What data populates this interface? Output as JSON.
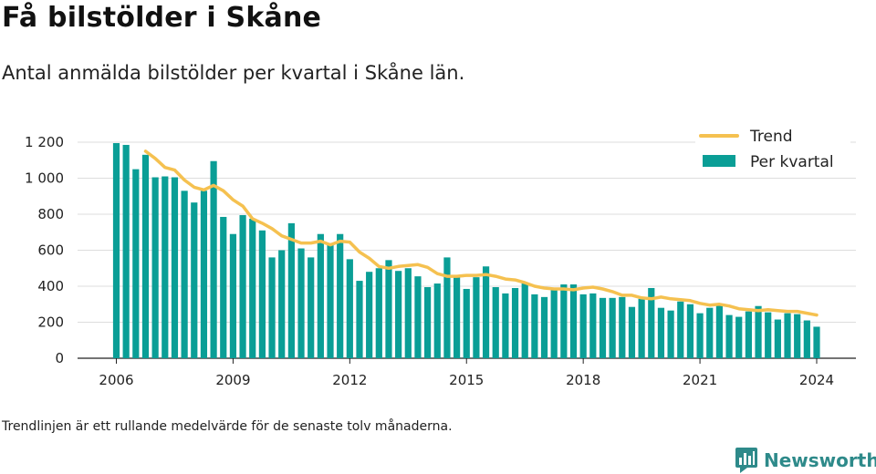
{
  "title": "Få bilstölder i Skåne",
  "subtitle": "Antal anmälda bilstölder per kvartal i Skåne län.",
  "footnote": "Trendlinjen är ett rullande medelvärde för de senaste tolv månaderna.",
  "brand": "Newsworthy",
  "colors": {
    "bar": "#0a9e96",
    "trend": "#f5c150",
    "grid": "#dddddd",
    "brand": "#2e8a8a"
  },
  "chart_data": {
    "type": "bar",
    "title": "Få bilstölder i Skåne",
    "xlabel": "",
    "ylabel": "",
    "ylim": [
      0,
      1250
    ],
    "grid": true,
    "legend_position": "top-right",
    "y_ticks": [
      0,
      200,
      400,
      600,
      800,
      1000,
      1200
    ],
    "y_tick_labels": [
      "0",
      "200",
      "400",
      "600",
      "800",
      "1 000",
      "1 200"
    ],
    "x_ticks": [
      2006,
      2009,
      2012,
      2015,
      2018,
      2021,
      2024
    ],
    "x_tick_labels": [
      "2006",
      "2009",
      "2012",
      "2015",
      "2018",
      "2021",
      "2024"
    ],
    "series": [
      {
        "name": "Per kvartal",
        "type": "bar",
        "x": [
          "2006-Q1",
          "2006-Q2",
          "2006-Q3",
          "2006-Q4",
          "2007-Q1",
          "2007-Q2",
          "2007-Q3",
          "2007-Q4",
          "2008-Q1",
          "2008-Q2",
          "2008-Q3",
          "2008-Q4",
          "2009-Q1",
          "2009-Q2",
          "2009-Q3",
          "2009-Q4",
          "2010-Q1",
          "2010-Q2",
          "2010-Q3",
          "2010-Q4",
          "2011-Q1",
          "2011-Q2",
          "2011-Q3",
          "2011-Q4",
          "2012-Q1",
          "2012-Q2",
          "2012-Q3",
          "2012-Q4",
          "2013-Q1",
          "2013-Q2",
          "2013-Q3",
          "2013-Q4",
          "2014-Q1",
          "2014-Q2",
          "2014-Q3",
          "2014-Q4",
          "2015-Q1",
          "2015-Q2",
          "2015-Q3",
          "2015-Q4",
          "2016-Q1",
          "2016-Q2",
          "2016-Q3",
          "2016-Q4",
          "2017-Q1",
          "2017-Q2",
          "2017-Q3",
          "2017-Q4",
          "2018-Q1",
          "2018-Q2",
          "2018-Q3",
          "2018-Q4",
          "2019-Q1",
          "2019-Q2",
          "2019-Q3",
          "2019-Q4",
          "2020-Q1",
          "2020-Q2",
          "2020-Q3",
          "2020-Q4",
          "2021-Q1",
          "2021-Q2",
          "2021-Q3",
          "2021-Q4",
          "2022-Q1",
          "2022-Q2",
          "2022-Q3",
          "2022-Q4",
          "2023-Q1",
          "2023-Q2",
          "2023-Q3",
          "2023-Q4",
          "2024-Q1"
        ],
        "values": [
          1195,
          1185,
          1050,
          1130,
          1005,
          1010,
          1005,
          930,
          865,
          930,
          1095,
          785,
          690,
          795,
          775,
          710,
          560,
          600,
          750,
          610,
          560,
          690,
          630,
          690,
          550,
          430,
          480,
          500,
          545,
          485,
          500,
          455,
          395,
          415,
          560,
          450,
          385,
          450,
          510,
          395,
          360,
          390,
          415,
          355,
          340,
          385,
          410,
          410,
          355,
          360,
          335,
          335,
          340,
          285,
          330,
          390,
          280,
          265,
          315,
          300,
          250,
          280,
          300,
          240,
          230,
          260,
          290,
          255,
          215,
          250,
          245,
          210,
          175
        ]
      },
      {
        "name": "Trend",
        "type": "line",
        "x": [
          "2006-Q4",
          "2007-Q1",
          "2007-Q2",
          "2007-Q3",
          "2007-Q4",
          "2008-Q1",
          "2008-Q2",
          "2008-Q3",
          "2008-Q4",
          "2009-Q1",
          "2009-Q2",
          "2009-Q3",
          "2009-Q4",
          "2010-Q1",
          "2010-Q2",
          "2010-Q3",
          "2010-Q4",
          "2011-Q1",
          "2011-Q2",
          "2011-Q3",
          "2011-Q4",
          "2012-Q1",
          "2012-Q2",
          "2012-Q3",
          "2012-Q4",
          "2013-Q1",
          "2013-Q2",
          "2013-Q3",
          "2013-Q4",
          "2014-Q1",
          "2014-Q2",
          "2014-Q3",
          "2014-Q4",
          "2015-Q1",
          "2015-Q2",
          "2015-Q3",
          "2015-Q4",
          "2016-Q1",
          "2016-Q2",
          "2016-Q3",
          "2016-Q4",
          "2017-Q1",
          "2017-Q2",
          "2017-Q3",
          "2017-Q4",
          "2018-Q1",
          "2018-Q2",
          "2018-Q3",
          "2018-Q4",
          "2019-Q1",
          "2019-Q2",
          "2019-Q3",
          "2019-Q4",
          "2020-Q1",
          "2020-Q2",
          "2020-Q3",
          "2020-Q4",
          "2021-Q1",
          "2021-Q2",
          "2021-Q3",
          "2021-Q4",
          "2022-Q1",
          "2022-Q2",
          "2022-Q3",
          "2022-Q4",
          "2023-Q1",
          "2023-Q2",
          "2023-Q3",
          "2023-Q4",
          "2024-Q1"
        ],
        "values": [
          1150,
          1110,
          1060,
          1045,
          990,
          950,
          935,
          960,
          930,
          880,
          845,
          775,
          750,
          720,
          680,
          660,
          640,
          640,
          650,
          630,
          650,
          645,
          590,
          555,
          510,
          500,
          510,
          515,
          520,
          505,
          470,
          455,
          455,
          460,
          460,
          465,
          455,
          440,
          435,
          420,
          400,
          390,
          385,
          385,
          380,
          390,
          395,
          385,
          370,
          350,
          350,
          335,
          330,
          340,
          330,
          325,
          320,
          305,
          295,
          300,
          290,
          275,
          270,
          265,
          270,
          265,
          260,
          260,
          250,
          240
        ]
      }
    ]
  }
}
